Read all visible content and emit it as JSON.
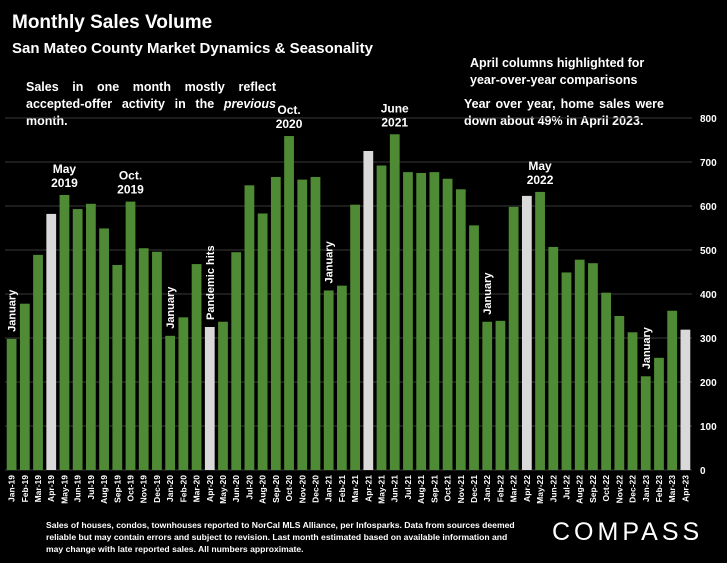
{
  "header": {
    "title": "Monthly Sales Volume",
    "subtitle": "San Mateo County Market Dynamics & Seasonality"
  },
  "notes": {
    "left_pre": "Sales in one month mostly reflect accepted-offer activity in the ",
    "left_em": "previous",
    "left_post": " month.",
    "right1": "April columns highlighted for year-over-year comparisons",
    "right2": "Year over year, home sales were down about 49% in April 2023."
  },
  "footer": {
    "text": "Sales of houses, condos, townhouses reported to NorCal MLS Alliance, per Infosparks. Data from sources deemed reliable but may contain errors and subject to revision. Last month estimated based on available information and may change with late reported sales. All numbers approximate."
  },
  "logo": {
    "text": "COMPASS"
  },
  "chart_data": {
    "type": "bar",
    "title": "Monthly Sales Volume",
    "categories": [
      "Jan-19",
      "Feb-19",
      "Mar-19",
      "Apr-19",
      "May-19",
      "Jun-19",
      "Jul-19",
      "Aug-19",
      "Sep-19",
      "Oct-19",
      "Nov-19",
      "Dec-19",
      "Jan-20",
      "Feb-20",
      "Mar-20",
      "Apr-20",
      "May-20",
      "Jun-20",
      "Jul-20",
      "Aug-20",
      "Sep-20",
      "Oct-20",
      "Nov-20",
      "Dec-20",
      "Jan-21",
      "Feb-21",
      "Mar-21",
      "Apr-21",
      "May-21",
      "Jun-21",
      "Jul-21",
      "Aug-21",
      "Sep-21",
      "Oct-21",
      "Nov-21",
      "Dec-21",
      "Jan-22",
      "Feb-22",
      "Mar-22",
      "Apr-22",
      "May-22",
      "Jun-22",
      "Jul-22",
      "Aug-22",
      "Sep-22",
      "Oct-22",
      "Nov-22",
      "Dec-22",
      "Jan-23",
      "Feb-23",
      "Mar-23",
      "Apr-23"
    ],
    "values": [
      298,
      378,
      489,
      582,
      625,
      593,
      605,
      549,
      466,
      610,
      504,
      496,
      305,
      347,
      468,
      325,
      337,
      495,
      647,
      583,
      666,
      759,
      660,
      666,
      408,
      419,
      603,
      725,
      692,
      763,
      677,
      675,
      677,
      662,
      638,
      556,
      337,
      339,
      598,
      623,
      632,
      507,
      449,
      478,
      470,
      403,
      350,
      313,
      213,
      255,
      362,
      319
    ],
    "highlight_indices": [
      3,
      15,
      27,
      39,
      51
    ],
    "ylim": [
      0,
      800
    ],
    "yticks": [
      0,
      100,
      200,
      300,
      400,
      500,
      600,
      700,
      800
    ],
    "grid": true,
    "colors": {
      "bar": "#4f8a34",
      "highlight": "#d9d9d9",
      "grid": "#3a3a3a",
      "label": "#ffffff"
    },
    "annotations": [
      {
        "index": 0,
        "text": "January",
        "style": "vertical"
      },
      {
        "index": 4,
        "text": "May\n2019",
        "style": "horizontal"
      },
      {
        "index": 9,
        "text": "Oct.\n2019",
        "style": "horizontal"
      },
      {
        "index": 12,
        "text": "January",
        "style": "vertical"
      },
      {
        "index": 15,
        "text": "Pandemic hits",
        "style": "vertical"
      },
      {
        "index": 21,
        "text": "Oct.\n2020",
        "style": "horizontal"
      },
      {
        "index": 24,
        "text": "January",
        "style": "vertical"
      },
      {
        "index": 29,
        "text": "June\n2021",
        "style": "horizontal"
      },
      {
        "index": 36,
        "text": "January",
        "style": "vertical"
      },
      {
        "index": 40,
        "text": "May\n2022",
        "style": "horizontal"
      },
      {
        "index": 48,
        "text": "January",
        "style": "vertical"
      }
    ]
  }
}
